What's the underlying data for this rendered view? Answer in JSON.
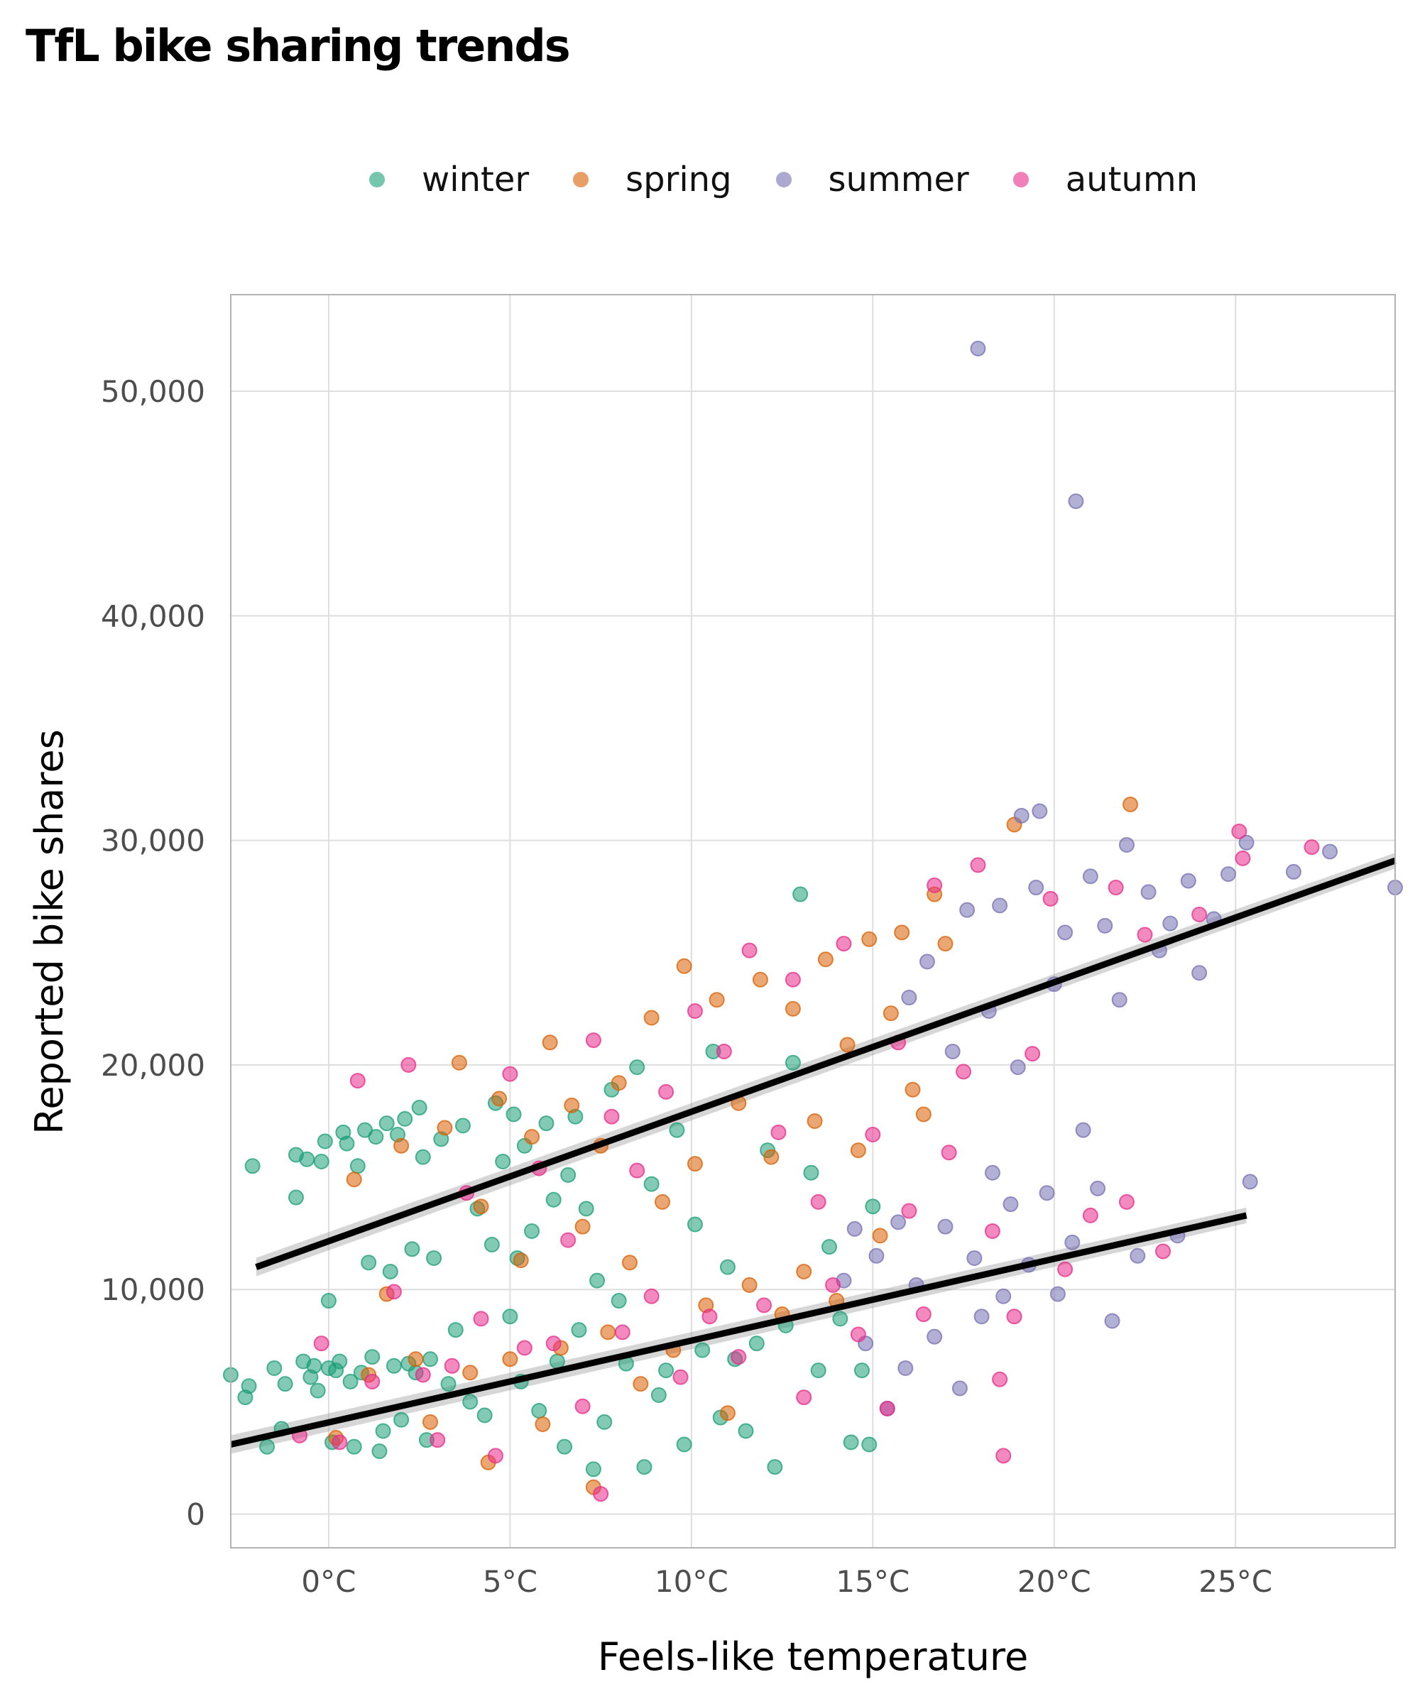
{
  "chart_data": {
    "type": "scatter",
    "title": "TfL bike sharing trends",
    "xlabel": "Feels-like temperature",
    "ylabel": "Reported bike shares",
    "xlim": [
      -2.7,
      29.4
    ],
    "ylim": [
      -1500,
      54300
    ],
    "x_ticks": [
      0,
      5,
      10,
      15,
      20,
      25
    ],
    "x_tick_labels": [
      "0°C",
      "5°C",
      "10°C",
      "15°C",
      "20°C",
      "25°C"
    ],
    "y_ticks": [
      0,
      10000,
      20000,
      30000,
      40000,
      50000
    ],
    "y_tick_labels": [
      "0",
      "10,000",
      "20,000",
      "30,000",
      "40,000",
      "50,000"
    ],
    "grid": true,
    "legend_position": "top",
    "series": [
      {
        "name": "winter",
        "color": "#1b9e77",
        "points": [
          [
            -2.7,
            6200
          ],
          [
            -2.3,
            5200
          ],
          [
            -2.2,
            5700
          ],
          [
            -2.1,
            15500
          ],
          [
            -1.7,
            3000
          ],
          [
            -1.5,
            6500
          ],
          [
            -1.3,
            3800
          ],
          [
            -1.2,
            5800
          ],
          [
            -0.9,
            16000
          ],
          [
            -0.9,
            14100
          ],
          [
            -0.7,
            6800
          ],
          [
            -0.6,
            15800
          ],
          [
            -0.5,
            6100
          ],
          [
            -0.4,
            6600
          ],
          [
            -0.3,
            5500
          ],
          [
            -0.2,
            15700
          ],
          [
            -0.1,
            16600
          ],
          [
            0.0,
            6500
          ],
          [
            0.0,
            9500
          ],
          [
            0.1,
            3200
          ],
          [
            0.2,
            6400
          ],
          [
            0.3,
            6800
          ],
          [
            0.4,
            17000
          ],
          [
            0.5,
            16500
          ],
          [
            0.6,
            5900
          ],
          [
            0.7,
            3000
          ],
          [
            0.8,
            15500
          ],
          [
            0.9,
            6300
          ],
          [
            1.0,
            17100
          ],
          [
            1.1,
            11200
          ],
          [
            1.2,
            7000
          ],
          [
            1.3,
            16800
          ],
          [
            1.4,
            2800
          ],
          [
            1.5,
            3700
          ],
          [
            1.6,
            17400
          ],
          [
            1.7,
            10800
          ],
          [
            1.8,
            6600
          ],
          [
            1.9,
            16900
          ],
          [
            2.0,
            4200
          ],
          [
            2.1,
            17600
          ],
          [
            2.2,
            6700
          ],
          [
            2.3,
            11800
          ],
          [
            2.4,
            6300
          ],
          [
            2.5,
            18100
          ],
          [
            2.6,
            15900
          ],
          [
            2.7,
            3300
          ],
          [
            2.8,
            6900
          ],
          [
            2.9,
            11400
          ],
          [
            3.1,
            16700
          ],
          [
            3.3,
            5800
          ],
          [
            3.5,
            8200
          ],
          [
            3.7,
            17300
          ],
          [
            3.9,
            5000
          ],
          [
            4.1,
            13600
          ],
          [
            4.3,
            4400
          ],
          [
            4.5,
            12000
          ],
          [
            4.6,
            18300
          ],
          [
            4.8,
            15700
          ],
          [
            5.0,
            8800
          ],
          [
            5.1,
            17800
          ],
          [
            5.2,
            11400
          ],
          [
            5.3,
            5900
          ],
          [
            5.4,
            16400
          ],
          [
            5.6,
            12600
          ],
          [
            5.8,
            4600
          ],
          [
            6.0,
            17400
          ],
          [
            6.2,
            14000
          ],
          [
            6.3,
            6800
          ],
          [
            6.5,
            3000
          ],
          [
            6.6,
            15100
          ],
          [
            6.8,
            17700
          ],
          [
            6.9,
            8200
          ],
          [
            7.1,
            13600
          ],
          [
            7.3,
            2000
          ],
          [
            7.4,
            10400
          ],
          [
            7.6,
            4100
          ],
          [
            7.8,
            18900
          ],
          [
            8.0,
            9500
          ],
          [
            8.2,
            6700
          ],
          [
            8.5,
            19900
          ],
          [
            8.7,
            2100
          ],
          [
            8.9,
            14700
          ],
          [
            9.1,
            5300
          ],
          [
            9.3,
            6400
          ],
          [
            9.6,
            17100
          ],
          [
            9.8,
            3100
          ],
          [
            10.1,
            12900
          ],
          [
            10.3,
            7300
          ],
          [
            10.6,
            20600
          ],
          [
            10.8,
            4300
          ],
          [
            11.0,
            11000
          ],
          [
            11.2,
            6900
          ],
          [
            11.5,
            3700
          ],
          [
            11.8,
            7600
          ],
          [
            12.1,
            16200
          ],
          [
            12.3,
            2100
          ],
          [
            12.6,
            8400
          ],
          [
            12.8,
            20100
          ],
          [
            13.0,
            27600
          ],
          [
            13.3,
            15200
          ],
          [
            13.5,
            6400
          ],
          [
            13.8,
            11900
          ],
          [
            14.1,
            8700
          ],
          [
            14.4,
            3200
          ],
          [
            14.7,
            6400
          ],
          [
            14.9,
            3100
          ],
          [
            15.0,
            13700
          ]
        ]
      },
      {
        "name": "spring",
        "color": "#d95f02",
        "points": [
          [
            0.2,
            3400
          ],
          [
            0.7,
            14900
          ],
          [
            1.1,
            6200
          ],
          [
            1.6,
            9800
          ],
          [
            2.0,
            16400
          ],
          [
            2.4,
            6900
          ],
          [
            2.8,
            4100
          ],
          [
            3.2,
            17200
          ],
          [
            3.6,
            20100
          ],
          [
            3.9,
            6300
          ],
          [
            4.2,
            13700
          ],
          [
            4.4,
            2300
          ],
          [
            4.7,
            18500
          ],
          [
            5.0,
            6900
          ],
          [
            5.3,
            11300
          ],
          [
            5.6,
            16800
          ],
          [
            5.9,
            4000
          ],
          [
            6.1,
            21000
          ],
          [
            6.4,
            7400
          ],
          [
            6.7,
            18200
          ],
          [
            7.0,
            12800
          ],
          [
            7.3,
            1200
          ],
          [
            7.5,
            16400
          ],
          [
            7.7,
            8100
          ],
          [
            8.0,
            19200
          ],
          [
            8.3,
            11200
          ],
          [
            8.6,
            5800
          ],
          [
            8.9,
            22100
          ],
          [
            9.2,
            13900
          ],
          [
            9.5,
            7300
          ],
          [
            9.8,
            24400
          ],
          [
            10.1,
            15600
          ],
          [
            10.4,
            9300
          ],
          [
            10.7,
            22900
          ],
          [
            11.0,
            4500
          ],
          [
            11.3,
            18300
          ],
          [
            11.6,
            10200
          ],
          [
            11.9,
            23800
          ],
          [
            12.2,
            15900
          ],
          [
            12.5,
            8900
          ],
          [
            12.8,
            22500
          ],
          [
            13.1,
            10800
          ],
          [
            13.4,
            17500
          ],
          [
            13.7,
            24700
          ],
          [
            14.0,
            9500
          ],
          [
            14.3,
            20900
          ],
          [
            14.6,
            16200
          ],
          [
            14.9,
            25600
          ],
          [
            15.2,
            12400
          ],
          [
            15.5,
            22300
          ],
          [
            15.8,
            25900
          ],
          [
            16.1,
            18900
          ],
          [
            16.4,
            17800
          ],
          [
            16.7,
            27600
          ],
          [
            17.0,
            25400
          ],
          [
            18.9,
            30700
          ],
          [
            22.1,
            31600
          ]
        ]
      },
      {
        "name": "summer",
        "color": "#7570b3",
        "points": [
          [
            14.2,
            10400
          ],
          [
            14.5,
            12700
          ],
          [
            14.8,
            7600
          ],
          [
            15.1,
            11500
          ],
          [
            15.4,
            4700
          ],
          [
            15.7,
            13000
          ],
          [
            15.9,
            6500
          ],
          [
            16.0,
            23000
          ],
          [
            16.2,
            10200
          ],
          [
            16.5,
            24600
          ],
          [
            16.7,
            7900
          ],
          [
            17.0,
            12800
          ],
          [
            17.2,
            20600
          ],
          [
            17.4,
            5600
          ],
          [
            17.6,
            26900
          ],
          [
            17.8,
            11400
          ],
          [
            17.9,
            51900
          ],
          [
            18.0,
            8800
          ],
          [
            18.2,
            22400
          ],
          [
            18.3,
            15200
          ],
          [
            18.5,
            27100
          ],
          [
            18.6,
            9700
          ],
          [
            18.8,
            13800
          ],
          [
            19.0,
            19900
          ],
          [
            19.1,
            31100
          ],
          [
            19.3,
            11100
          ],
          [
            19.5,
            27900
          ],
          [
            19.6,
            31300
          ],
          [
            19.8,
            14300
          ],
          [
            20.0,
            23600
          ],
          [
            20.1,
            9800
          ],
          [
            20.3,
            25900
          ],
          [
            20.5,
            12100
          ],
          [
            20.6,
            45100
          ],
          [
            20.8,
            17100
          ],
          [
            21.0,
            28400
          ],
          [
            21.2,
            14500
          ],
          [
            21.4,
            26200
          ],
          [
            21.6,
            8600
          ],
          [
            21.8,
            22900
          ],
          [
            22.0,
            29800
          ],
          [
            22.3,
            11500
          ],
          [
            22.6,
            27700
          ],
          [
            22.9,
            25100
          ],
          [
            23.2,
            26300
          ],
          [
            23.4,
            12400
          ],
          [
            23.7,
            28200
          ],
          [
            24.0,
            24100
          ],
          [
            24.4,
            26500
          ],
          [
            24.8,
            28500
          ],
          [
            25.3,
            29900
          ],
          [
            25.4,
            14800
          ],
          [
            26.6,
            28600
          ],
          [
            27.6,
            29500
          ],
          [
            29.4,
            27900
          ]
        ]
      },
      {
        "name": "autumn",
        "color": "#e7298a",
        "points": [
          [
            -0.8,
            3500
          ],
          [
            -0.2,
            7600
          ],
          [
            0.3,
            3200
          ],
          [
            0.8,
            19300
          ],
          [
            1.2,
            5900
          ],
          [
            1.8,
            9900
          ],
          [
            2.2,
            20000
          ],
          [
            2.6,
            6200
          ],
          [
            3.0,
            3300
          ],
          [
            3.4,
            6600
          ],
          [
            3.8,
            14300
          ],
          [
            4.2,
            8700
          ],
          [
            4.6,
            2600
          ],
          [
            5.0,
            19600
          ],
          [
            5.4,
            7400
          ],
          [
            5.8,
            15400
          ],
          [
            6.2,
            7600
          ],
          [
            6.6,
            12200
          ],
          [
            7.0,
            4800
          ],
          [
            7.3,
            21100
          ],
          [
            7.5,
            900
          ],
          [
            7.8,
            17700
          ],
          [
            8.1,
            8100
          ],
          [
            8.5,
            15300
          ],
          [
            8.9,
            9700
          ],
          [
            9.3,
            18800
          ],
          [
            9.7,
            6100
          ],
          [
            10.1,
            22400
          ],
          [
            10.5,
            8800
          ],
          [
            10.9,
            20600
          ],
          [
            11.3,
            7000
          ],
          [
            11.6,
            25100
          ],
          [
            12.0,
            9300
          ],
          [
            12.4,
            17000
          ],
          [
            12.8,
            23800
          ],
          [
            13.1,
            5200
          ],
          [
            13.5,
            13900
          ],
          [
            13.9,
            10200
          ],
          [
            14.2,
            25400
          ],
          [
            14.6,
            8000
          ],
          [
            15.0,
            16900
          ],
          [
            15.4,
            4700
          ],
          [
            15.7,
            21000
          ],
          [
            16.0,
            13500
          ],
          [
            16.4,
            8900
          ],
          [
            16.7,
            28000
          ],
          [
            17.1,
            16100
          ],
          [
            17.5,
            19700
          ],
          [
            17.9,
            28900
          ],
          [
            18.3,
            12600
          ],
          [
            18.5,
            6000
          ],
          [
            18.6,
            2600
          ],
          [
            18.9,
            8800
          ],
          [
            19.4,
            20500
          ],
          [
            19.9,
            27400
          ],
          [
            20.3,
            10900
          ],
          [
            21.0,
            13300
          ],
          [
            21.7,
            27900
          ],
          [
            22.0,
            13900
          ],
          [
            22.5,
            25800
          ],
          [
            23.0,
            11700
          ],
          [
            24.0,
            26700
          ],
          [
            25.1,
            30400
          ],
          [
            25.2,
            29200
          ],
          [
            27.1,
            29700
          ]
        ]
      }
    ],
    "trend_lines": [
      {
        "x": [
          -2.0,
          29.4
        ],
        "y": [
          11000,
          29100
        ]
      },
      {
        "x": [
          -2.7,
          25.3
        ],
        "y": [
          3100,
          13300
        ]
      }
    ]
  }
}
